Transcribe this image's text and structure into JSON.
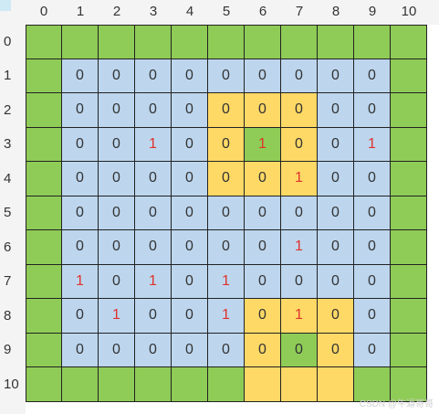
{
  "column_headers": [
    "0",
    "1",
    "2",
    "3",
    "4",
    "5",
    "6",
    "7",
    "8",
    "9",
    "10"
  ],
  "row_headers": [
    "0",
    "1",
    "2",
    "3",
    "4",
    "5",
    "6",
    "7",
    "8",
    "9",
    "10"
  ],
  "colors": {
    "green": "#8fcc57",
    "blue": "#bdd6ee",
    "yellow": "#ffd966"
  },
  "cell_colors": [
    "GGGGGGGGGGG",
    "GBBBBBBBBBG",
    "GBBBBYYYBBG",
    "GBBBBYGYBBG",
    "GBBBBYYYBBG",
    "GBBBBBBBBBG",
    "GBBBBBBBBBG",
    "GBBBBBBBBBG",
    "GBBBBBYYYBG",
    "GBBBBBYGYBG",
    "GGGGGGYYYGG"
  ],
  "cell_values": [
    [
      "",
      "",
      "",
      "",
      "",
      "",
      "",
      "",
      "",
      "",
      ""
    ],
    [
      "",
      "0",
      "0",
      "0",
      "0",
      "0",
      "0",
      "0",
      "0",
      "0",
      ""
    ],
    [
      "",
      "0",
      "0",
      "0",
      "0",
      "0",
      "0",
      "0",
      "0",
      "0",
      ""
    ],
    [
      "",
      "0",
      "0",
      "1",
      "0",
      "0",
      "1",
      "0",
      "0",
      "1",
      ""
    ],
    [
      "",
      "0",
      "0",
      "0",
      "0",
      "0",
      "0",
      "1",
      "0",
      "0",
      ""
    ],
    [
      "",
      "0",
      "0",
      "0",
      "0",
      "0",
      "0",
      "0",
      "0",
      "0",
      ""
    ],
    [
      "",
      "0",
      "0",
      "0",
      "0",
      "0",
      "0",
      "1",
      "0",
      "0",
      ""
    ],
    [
      "",
      "1",
      "0",
      "1",
      "0",
      "1",
      "0",
      "0",
      "0",
      "0",
      ""
    ],
    [
      "",
      "0",
      "1",
      "0",
      "0",
      "1",
      "0",
      "1",
      "0",
      "0",
      ""
    ],
    [
      "",
      "0",
      "0",
      "0",
      "0",
      "0",
      "0",
      "0",
      "0",
      "0",
      ""
    ],
    [
      "",
      "",
      "",
      "",
      "",
      "",
      "",
      "",
      "",
      "",
      ""
    ]
  ],
  "watermark": "CSDN @牛逼哥哥"
}
